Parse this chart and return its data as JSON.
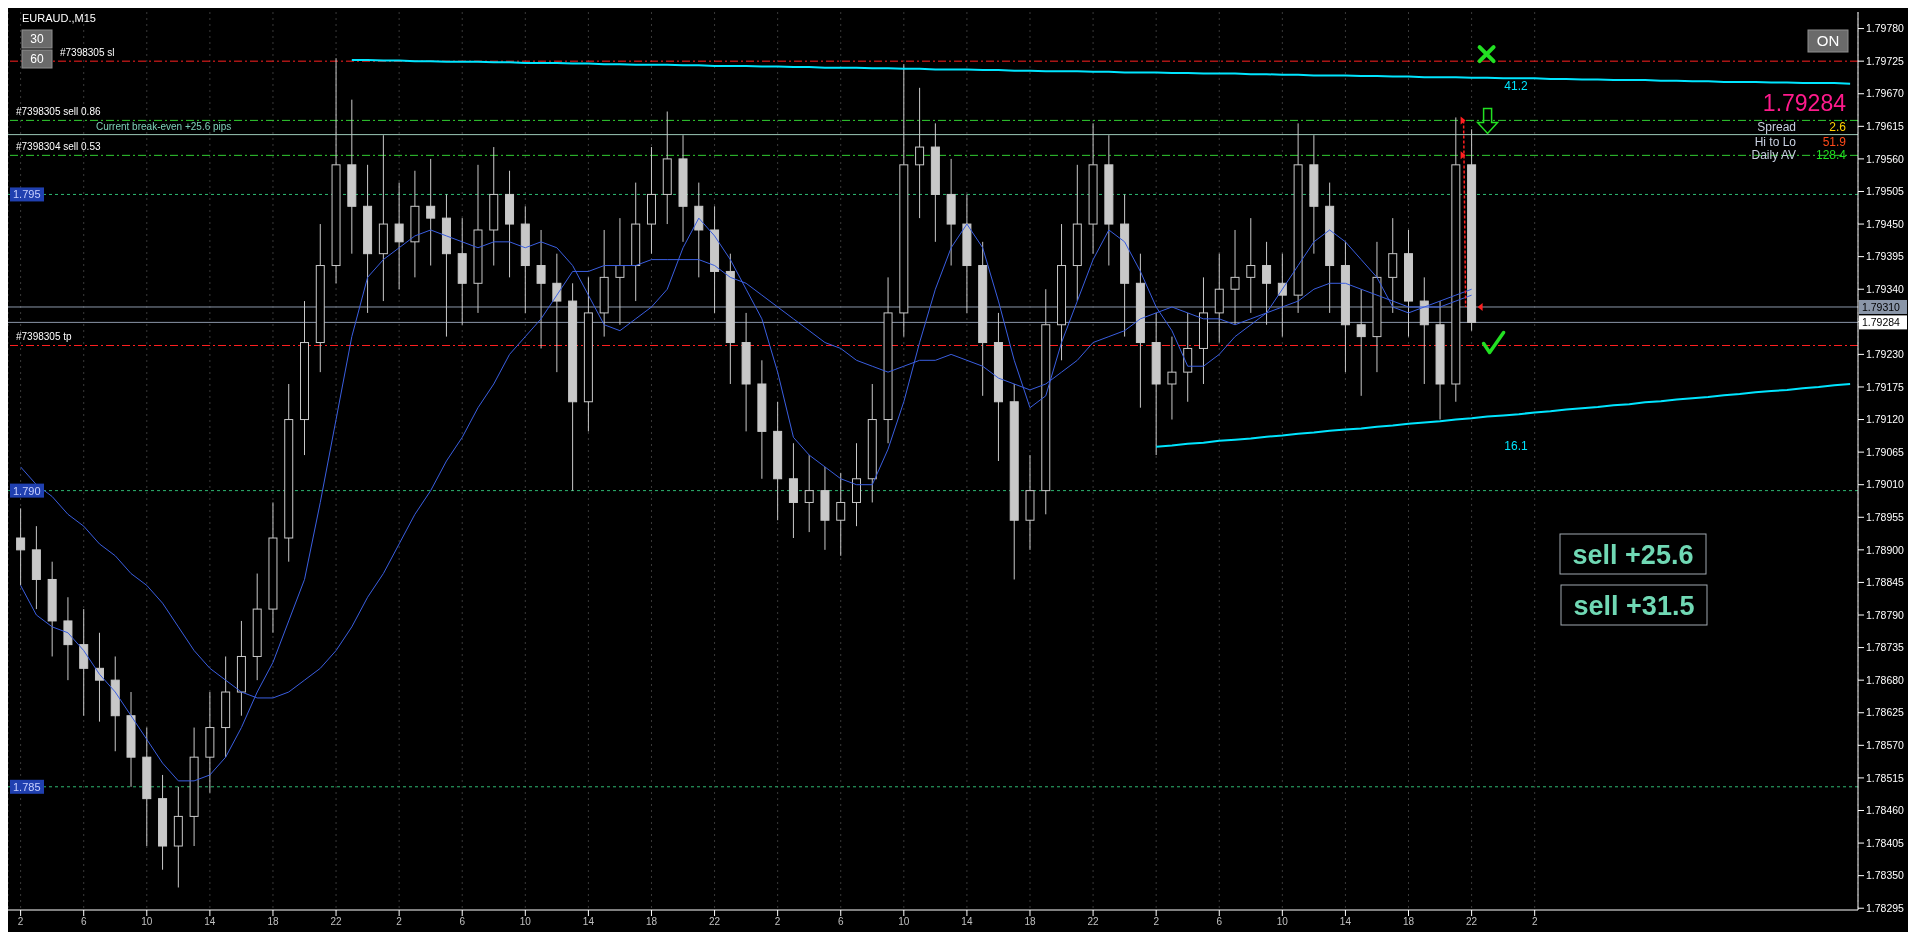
{
  "chart_data": {
    "type": "candlestick",
    "title": "EURAUD.,M15",
    "color": "#c8c8c8",
    "grid": "x",
    "ylim": [
      1.78292,
      1.79808
    ],
    "yticks": [
      {
        "value": 1.78295,
        "label": "1.78295"
      },
      {
        "value": 1.7835,
        "label": "1.78350"
      },
      {
        "value": 1.78405,
        "label": "1.78405"
      },
      {
        "value": 1.7846,
        "label": "1.78460"
      },
      {
        "value": 1.78515,
        "label": "1.78515"
      },
      {
        "value": 1.7857,
        "label": "1.78570"
      },
      {
        "value": 1.78625,
        "label": "1.78625"
      },
      {
        "value": 1.7868,
        "label": "1.78680"
      },
      {
        "value": 1.78735,
        "label": "1.78735"
      },
      {
        "value": 1.7879,
        "label": "1.78790"
      },
      {
        "value": 1.78845,
        "label": "1.78845"
      },
      {
        "value": 1.789,
        "label": "1.78900"
      },
      {
        "value": 1.78955,
        "label": "1.78955"
      },
      {
        "value": 1.7901,
        "label": "1.79010"
      },
      {
        "value": 1.79065,
        "label": "1.79065"
      },
      {
        "value": 1.7912,
        "label": "1.79120"
      },
      {
        "value": 1.79175,
        "label": "1.79175"
      },
      {
        "value": 1.7923,
        "label": "1.79230"
      },
      {
        "value": 1.79285,
        "label": null
      },
      {
        "value": 1.7934,
        "label": "1.79340"
      },
      {
        "value": 1.79395,
        "label": "1.79395"
      },
      {
        "value": 1.7945,
        "label": "1.79450"
      },
      {
        "value": 1.79505,
        "label": "1.79505"
      },
      {
        "value": 1.7956,
        "label": "1.79560"
      },
      {
        "value": 1.79615,
        "label": "1.79615"
      },
      {
        "value": 1.7967,
        "label": "1.79670"
      },
      {
        "value": 1.79725,
        "label": "1.79725"
      },
      {
        "value": 1.7978,
        "label": "1.79780"
      }
    ],
    "categories": [
      "2",
      null,
      null,
      null,
      "6",
      null,
      null,
      null,
      "10",
      null,
      null,
      null,
      "14",
      null,
      null,
      null,
      "18",
      null,
      null,
      null,
      "22",
      null,
      null,
      null,
      "2",
      null,
      null,
      null,
      "6",
      null,
      null,
      null,
      "10",
      null,
      null,
      null,
      "14",
      null,
      null,
      null,
      "18",
      null,
      null,
      null,
      "22",
      null,
      null,
      null,
      "2",
      null,
      null,
      null,
      "6",
      null,
      null,
      null,
      "10",
      null,
      null,
      null,
      "14",
      null,
      null,
      null,
      "18",
      null,
      null,
      null,
      "22",
      null,
      null,
      null,
      "2",
      null,
      null,
      null,
      "6",
      null,
      null,
      null,
      "10",
      null,
      null,
      null,
      "14",
      null,
      null,
      null,
      "18",
      null,
      null,
      null,
      "22",
      null,
      null,
      null,
      "2",
      null,
      null,
      null,
      null,
      null,
      null,
      null,
      null,
      null,
      null,
      null,
      null,
      null,
      null,
      null,
      null,
      null,
      null,
      null,
      null
    ],
    "ohlc": [
      [
        1.7892,
        1.7897,
        1.7884,
        1.789
      ],
      [
        1.789,
        1.7894,
        1.788,
        1.7885
      ],
      [
        1.7885,
        1.7888,
        1.7872,
        1.7878
      ],
      [
        1.7878,
        1.7882,
        1.7868,
        1.7874
      ],
      [
        1.7874,
        1.788,
        1.7862,
        1.787
      ],
      [
        1.787,
        1.7876,
        1.7861,
        1.7868
      ],
      [
        1.7868,
        1.7872,
        1.7856,
        1.7862
      ],
      [
        1.7862,
        1.7866,
        1.785,
        1.7855
      ],
      [
        1.7855,
        1.786,
        1.784,
        1.7848
      ],
      [
        1.7848,
        1.7852,
        1.7836,
        1.784
      ],
      [
        1.784,
        1.785,
        1.7833,
        1.7845
      ],
      [
        1.7845,
        1.786,
        1.784,
        1.7855
      ],
      [
        1.7855,
        1.7866,
        1.7849,
        1.786
      ],
      [
        1.786,
        1.7872,
        1.7855,
        1.7866
      ],
      [
        1.7866,
        1.7878,
        1.7862,
        1.7872
      ],
      [
        1.7872,
        1.7886,
        1.7868,
        1.788
      ],
      [
        1.788,
        1.7898,
        1.7876,
        1.7892
      ],
      [
        1.7892,
        1.7918,
        1.7888,
        1.7912
      ],
      [
        1.7912,
        1.7932,
        1.7906,
        1.7925
      ],
      [
        1.7925,
        1.7945,
        1.792,
        1.7938
      ],
      [
        1.7938,
        1.7973,
        1.7935,
        1.7955
      ],
      [
        1.7955,
        1.7966,
        1.794,
        1.7948
      ],
      [
        1.7948,
        1.7955,
        1.793,
        1.794
      ],
      [
        1.794,
        1.796,
        1.7932,
        1.7945
      ],
      [
        1.7945,
        1.7952,
        1.7934,
        1.7942
      ],
      [
        1.7942,
        1.7954,
        1.7936,
        1.7948
      ],
      [
        1.7948,
        1.7956,
        1.7938,
        1.7946
      ],
      [
        1.7946,
        1.795,
        1.7926,
        1.794
      ],
      [
        1.794,
        1.7946,
        1.7928,
        1.7935
      ],
      [
        1.7935,
        1.7955,
        1.793,
        1.7944
      ],
      [
        1.7944,
        1.7958,
        1.7938,
        1.795
      ],
      [
        1.795,
        1.7954,
        1.7936,
        1.7945
      ],
      [
        1.7945,
        1.7948,
        1.793,
        1.7938
      ],
      [
        1.7938,
        1.7944,
        1.7924,
        1.7935
      ],
      [
        1.7935,
        1.794,
        1.792,
        1.7932
      ],
      [
        1.7932,
        1.7935,
        1.79,
        1.7915
      ],
      [
        1.7915,
        1.7936,
        1.791,
        1.793
      ],
      [
        1.793,
        1.7944,
        1.7926,
        1.7936
      ],
      [
        1.7936,
        1.7946,
        1.7928,
        1.7938
      ],
      [
        1.7938,
        1.7952,
        1.7932,
        1.7945
      ],
      [
        1.7945,
        1.7958,
        1.794,
        1.795
      ],
      [
        1.795,
        1.7964,
        1.7945,
        1.7956
      ],
      [
        1.7956,
        1.796,
        1.7942,
        1.7948
      ],
      [
        1.7948,
        1.7952,
        1.7936,
        1.7944
      ],
      [
        1.7944,
        1.7948,
        1.793,
        1.7937
      ],
      [
        1.7937,
        1.794,
        1.7918,
        1.7925
      ],
      [
        1.7925,
        1.793,
        1.791,
        1.7918
      ],
      [
        1.7918,
        1.7922,
        1.7902,
        1.791
      ],
      [
        1.791,
        1.7915,
        1.7895,
        1.7902
      ],
      [
        1.7902,
        1.7908,
        1.7892,
        1.7898
      ],
      [
        1.7898,
        1.7906,
        1.7893,
        1.79
      ],
      [
        1.79,
        1.7904,
        1.789,
        1.7895
      ],
      [
        1.7895,
        1.7903,
        1.7889,
        1.7898
      ],
      [
        1.7898,
        1.7908,
        1.7894,
        1.7902
      ],
      [
        1.7902,
        1.7918,
        1.7898,
        1.7912
      ],
      [
        1.7912,
        1.7936,
        1.7908,
        1.793
      ],
      [
        1.793,
        1.7972,
        1.7926,
        1.7955
      ],
      [
        1.7955,
        1.7968,
        1.7946,
        1.7958
      ],
      [
        1.7958,
        1.7962,
        1.7942,
        1.795
      ],
      [
        1.795,
        1.7956,
        1.7938,
        1.7945
      ],
      [
        1.7945,
        1.795,
        1.793,
        1.7938
      ],
      [
        1.7938,
        1.7942,
        1.7916,
        1.7925
      ],
      [
        1.7925,
        1.793,
        1.7905,
        1.7915
      ],
      [
        1.7915,
        1.7918,
        1.7885,
        1.7895
      ],
      [
        1.7895,
        1.7906,
        1.789,
        1.79
      ],
      [
        1.79,
        1.7934,
        1.7896,
        1.7928
      ],
      [
        1.7928,
        1.7945,
        1.7922,
        1.7938
      ],
      [
        1.7938,
        1.7955,
        1.7932,
        1.7945
      ],
      [
        1.7945,
        1.7962,
        1.794,
        1.7955
      ],
      [
        1.7955,
        1.796,
        1.7938,
        1.7945
      ],
      [
        1.7945,
        1.795,
        1.7926,
        1.7935
      ],
      [
        1.7935,
        1.794,
        1.7914,
        1.7925
      ],
      [
        1.7925,
        1.793,
        1.7906,
        1.7918
      ],
      [
        1.7918,
        1.7926,
        1.7912,
        1.792
      ],
      [
        1.792,
        1.793,
        1.7915,
        1.7924
      ],
      [
        1.7924,
        1.7936,
        1.7918,
        1.793
      ],
      [
        1.793,
        1.794,
        1.7925,
        1.7934
      ],
      [
        1.7934,
        1.7944,
        1.7928,
        1.7936
      ],
      [
        1.7936,
        1.7946,
        1.793,
        1.7938
      ],
      [
        1.7938,
        1.7942,
        1.7928,
        1.7935
      ],
      [
        1.7935,
        1.794,
        1.7926,
        1.7933
      ],
      [
        1.7933,
        1.7962,
        1.793,
        1.7955
      ],
      [
        1.7955,
        1.796,
        1.794,
        1.7948
      ],
      [
        1.7948,
        1.7952,
        1.793,
        1.7938
      ],
      [
        1.7938,
        1.7942,
        1.792,
        1.7928
      ],
      [
        1.7928,
        1.7934,
        1.7916,
        1.7926
      ],
      [
        1.7926,
        1.7942,
        1.792,
        1.7936
      ],
      [
        1.7936,
        1.7946,
        1.793,
        1.794
      ],
      [
        1.794,
        1.7944,
        1.7926,
        1.7932
      ],
      [
        1.7932,
        1.7936,
        1.7918,
        1.7928
      ],
      [
        1.7928,
        1.7932,
        1.7912,
        1.7918
      ],
      [
        1.7918,
        1.7963,
        1.7915,
        1.7955
      ],
      [
        1.7955,
        1.7961,
        1.7927,
        1.79284
      ],
      null,
      null,
      null,
      null,
      null,
      null,
      null,
      null,
      null,
      null,
      null,
      null,
      null,
      null,
      null,
      null,
      null,
      null,
      null,
      null,
      null,
      null,
      null,
      null
    ],
    "series": [
      {
        "type": "line",
        "color": "#3a5ee0",
        "values": [
          1.7884,
          1.7879,
          1.7877,
          1.7876,
          1.7873,
          1.7869,
          1.7866,
          1.7862,
          1.7858,
          1.7854,
          1.7851,
          1.7851,
          1.7852,
          1.7855,
          1.786,
          1.7866,
          1.7871,
          1.7878,
          1.7885,
          1.7898,
          1.7912,
          1.7926,
          1.7936,
          1.7939,
          1.7941,
          1.7943,
          1.7944,
          1.7943,
          1.7942,
          1.7941,
          1.7942,
          1.7942,
          1.7941,
          1.7942,
          1.7941,
          1.7938,
          1.7933,
          1.7928,
          1.7927,
          1.7929,
          1.7931,
          1.7934,
          1.7941,
          1.7946,
          1.7943,
          1.7939,
          1.7934,
          1.7929,
          1.792,
          1.7909,
          1.7906,
          1.7904,
          1.7902,
          1.7901,
          1.7901,
          1.7907,
          1.7915,
          1.7925,
          1.7934,
          1.7941,
          1.7945,
          1.7941,
          1.7932,
          1.7922,
          1.7914,
          1.7916,
          1.7925,
          1.7932,
          1.7939,
          1.7944,
          1.7942,
          1.7937,
          1.7931,
          1.7927,
          1.7921,
          1.7921,
          1.7923,
          1.7926,
          1.7928,
          1.793,
          1.7934,
          1.7938,
          1.7942,
          1.7944,
          1.7942,
          1.7939,
          1.7936,
          1.7931,
          1.793,
          1.7931,
          1.7931,
          1.7932,
          1.7933,
          null,
          null,
          null,
          null,
          null,
          null,
          null,
          null,
          null,
          null,
          null,
          null,
          null,
          null,
          null,
          null,
          null,
          null,
          null,
          null,
          null,
          null,
          null,
          null
        ]
      },
      {
        "type": "line",
        "color": "#3a5ee0",
        "values": [
          1.7904,
          1.7901,
          1.7899,
          1.7896,
          1.7894,
          1.7891,
          1.7889,
          1.7886,
          1.7884,
          1.7881,
          1.7877,
          1.7873,
          1.787,
          1.7868,
          1.7866,
          1.7865,
          1.7865,
          1.7866,
          1.7868,
          1.787,
          1.7873,
          1.7877,
          1.7882,
          1.7886,
          1.7891,
          1.7896,
          1.79,
          1.7905,
          1.7909,
          1.7914,
          1.7918,
          1.7923,
          1.7926,
          1.7929,
          1.7933,
          1.7937,
          1.7937,
          1.7938,
          1.7938,
          1.7938,
          1.7939,
          1.7939,
          1.7939,
          1.7939,
          1.7938,
          1.7936,
          1.7935,
          1.7933,
          1.7931,
          1.7929,
          1.7927,
          1.7925,
          1.7924,
          1.7922,
          1.7921,
          1.792,
          1.7921,
          1.7922,
          1.7922,
          1.7923,
          1.7922,
          1.7921,
          1.7919,
          1.7918,
          1.7917,
          1.7918,
          1.792,
          1.7922,
          1.7925,
          1.7926,
          1.7927,
          1.7929,
          1.793,
          1.7931,
          1.793,
          1.7929,
          1.7929,
          1.7928,
          1.7929,
          1.793,
          1.7931,
          1.7932,
          1.7934,
          1.7935,
          1.7935,
          1.7934,
          1.7933,
          1.7932,
          1.7931,
          1.7931,
          1.7932,
          1.7933,
          1.7934,
          null,
          null,
          null,
          null,
          null,
          null,
          null,
          null,
          null,
          null,
          null,
          null,
          null,
          null,
          null,
          null,
          null,
          null,
          null,
          null,
          null,
          null,
          null,
          null
        ]
      },
      {
        "type": "line",
        "color": "#00e5ff",
        "values": [
          null,
          null,
          null,
          null,
          null,
          null,
          null,
          null,
          null,
          null,
          null,
          null,
          null,
          null,
          null,
          null,
          null,
          null,
          null,
          null,
          null,
          1.79727,
          1.79727,
          1.79726,
          1.79726,
          1.79725,
          1.79725,
          1.79724,
          1.79724,
          1.79724,
          1.79723,
          1.79723,
          1.79722,
          1.79722,
          1.79722,
          1.79721,
          1.79721,
          1.7972,
          1.7972,
          1.79719,
          1.79719,
          1.79719,
          1.79718,
          1.79718,
          1.79717,
          1.79717,
          1.79717,
          1.79716,
          1.79716,
          1.79715,
          1.79715,
          1.79714,
          1.79714,
          1.79714,
          1.79713,
          1.79713,
          1.79712,
          1.79712,
          1.79711,
          1.79711,
          1.79711,
          1.7971,
          1.7971,
          1.79709,
          1.79709,
          1.79708,
          1.79708,
          1.79708,
          1.79707,
          1.79707,
          1.79706,
          1.79706,
          1.79706,
          1.79705,
          1.79705,
          1.79704,
          1.79704,
          1.79704,
          1.79703,
          1.79703,
          1.79702,
          1.79702,
          1.79701,
          1.79701,
          1.79701,
          1.797,
          1.797,
          1.79699,
          1.79699,
          1.79698,
          1.79698,
          1.79698,
          1.79697,
          1.79697,
          1.79696,
          1.79696,
          1.79696,
          1.79695,
          1.79695,
          1.79694,
          1.79694,
          1.79693,
          1.79693,
          1.79693,
          1.79692,
          1.79692,
          1.79691,
          1.79691,
          1.7969,
          1.7969,
          1.7969,
          1.79689,
          1.79689,
          1.79688,
          1.79688,
          1.79688,
          1.79687
        ]
      },
      {
        "type": "line",
        "color": "#00e5ff",
        "values": [
          null,
          null,
          null,
          null,
          null,
          null,
          null,
          null,
          null,
          null,
          null,
          null,
          null,
          null,
          null,
          null,
          null,
          null,
          null,
          null,
          null,
          null,
          null,
          null,
          null,
          null,
          null,
          null,
          null,
          null,
          null,
          null,
          null,
          null,
          null,
          null,
          null,
          null,
          null,
          null,
          null,
          null,
          null,
          null,
          null,
          null,
          null,
          null,
          null,
          null,
          null,
          null,
          null,
          null,
          null,
          null,
          null,
          null,
          null,
          null,
          null,
          null,
          null,
          null,
          null,
          null,
          null,
          null,
          null,
          null,
          null,
          null,
          1.79074,
          1.79076,
          1.79079,
          1.79081,
          1.79084,
          1.79086,
          1.79088,
          1.79091,
          1.79093,
          1.79096,
          1.79098,
          1.79101,
          1.79103,
          1.79105,
          1.79108,
          1.7911,
          1.79113,
          1.79115,
          1.79117,
          1.7912,
          1.79122,
          1.79125,
          1.79127,
          1.79129,
          1.79132,
          1.79134,
          1.79137,
          1.79139,
          1.79141,
          1.79144,
          1.79146,
          1.79149,
          1.79151,
          1.79154,
          1.79156,
          1.79158,
          1.79161,
          1.79163,
          1.79166,
          1.79168,
          1.7917,
          1.79173,
          1.79175,
          1.79178,
          1.7918
        ]
      }
    ],
    "ref_lines": [
      {
        "axis": "y",
        "value": 1.79725,
        "label": "#7398305 sl",
        "color": "#ff2020",
        "line_style": "dashed"
      },
      {
        "axis": "y",
        "value": 1.79625,
        "label": "#7398305 sell 0.86",
        "color": "#32cd32",
        "line_style": "dashed"
      },
      {
        "axis": "y",
        "value": 1.79601,
        "label": "Current break-even +25.6 pips",
        "color": "#9cc8b8",
        "line_style": "solid"
      },
      {
        "axis": "y",
        "value": 1.79566,
        "label": "#7398304 sell 0.53",
        "color": "#32cd32",
        "line_style": "dashed"
      },
      {
        "axis": "y",
        "value": 1.795,
        "label": "1.795",
        "color": "#2eb872",
        "line_style": "dotted"
      },
      {
        "axis": "y",
        "value": 1.7931,
        "label": "1.79310",
        "color": "#8a96a8",
        "line_style": "solid"
      },
      {
        "axis": "y",
        "value": 1.79284,
        "label": "1.79284",
        "color": "#8a96a8",
        "line_style": "solid"
      },
      {
        "axis": "y",
        "value": 1.79245,
        "label": "#7398305 tp",
        "color": "#ff2020",
        "line_style": "dashed"
      },
      {
        "axis": "y",
        "value": 1.79,
        "label": "1.790",
        "color": "#2eb872",
        "line_style": "dotted"
      },
      {
        "axis": "y",
        "value": 1.785,
        "label": "1.785",
        "color": "#2eb872",
        "line_style": "dotted"
      }
    ],
    "annotations": [
      "30",
      "60",
      "ON",
      "1.79284",
      "Spread",
      "2.6",
      "Hi to Lo",
      "51.9",
      "Daily AV",
      "128.4",
      "sell +25.6",
      "sell +31.5",
      "41.2",
      "16.1"
    ]
  }
}
